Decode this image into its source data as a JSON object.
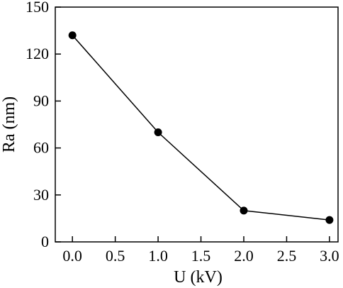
{
  "chart_data": {
    "type": "line",
    "title": "",
    "xlabel": "U (kV)",
    "ylabel": "Ra (nm)",
    "xlim": [
      -0.2,
      3.1
    ],
    "ylim": [
      0,
      150
    ],
    "xticks": [
      0.0,
      0.5,
      1.0,
      1.5,
      2.0,
      2.5,
      3.0
    ],
    "xtick_labels": [
      "0.0",
      "0.5",
      "1.0",
      "1.5",
      "2.0",
      "2.5",
      "3.0"
    ],
    "yticks": [
      0,
      30,
      60,
      90,
      120,
      150
    ],
    "ytick_labels": [
      "0",
      "30",
      "60",
      "90",
      "120",
      "150"
    ],
    "grid": false,
    "series": [
      {
        "x": [
          0.0,
          1.0,
          2.0,
          3.0
        ],
        "y": [
          132,
          70,
          20,
          14
        ],
        "color": "#000000",
        "marker": "filled-circle"
      }
    ]
  }
}
